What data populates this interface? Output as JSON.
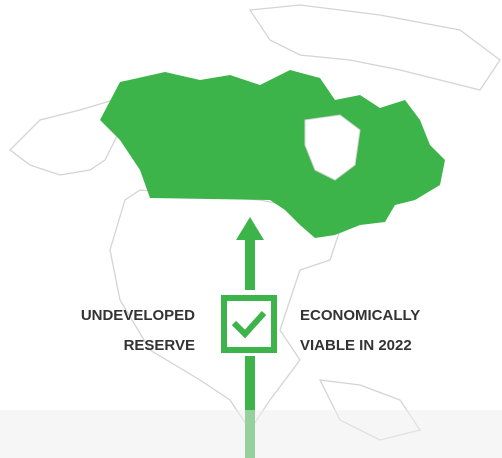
{
  "labels": {
    "left": [
      "UNDEVELOPED",
      "RESERVE"
    ],
    "right": [
      "ECONOMICALLY",
      "VIABLE IN 2022"
    ]
  }
}
